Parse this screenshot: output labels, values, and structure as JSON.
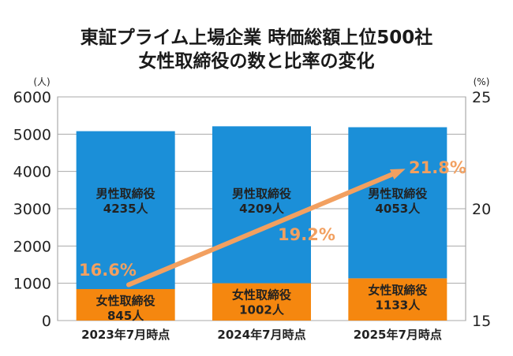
{
  "title_line1": "東証プライム上場企業 時価総額上位500社",
  "title_line2": "女性取締役の数と比率の変化",
  "chart_data": {
    "type": "bar",
    "stacked": true,
    "categories": [
      "2023年7月時点",
      "2024年7月時点",
      "2025年7月時点"
    ],
    "series": [
      {
        "name": "女性取締役",
        "values": [
          845,
          1002,
          1133
        ],
        "color": "#f5870f"
      },
      {
        "name": "男性取締役",
        "values": [
          4235,
          4209,
          4053
        ],
        "color": "#1b8fd8"
      }
    ],
    "segment_labels": {
      "女性取締役": [
        "女性取締役",
        "女性取締役",
        "女性取締役"
      ],
      "男性取締役": [
        "男性取締役",
        "男性取締役",
        "男性取締役"
      ],
      "female_counts": [
        "845人",
        "1002人",
        "1133人"
      ],
      "male_counts": [
        "4235人",
        "4209人",
        "4053人"
      ]
    },
    "ratio_series": {
      "values": [
        16.6,
        19.2,
        21.8
      ],
      "labels": [
        "16.6%",
        "19.2%",
        "21.8%"
      ],
      "color": "#f2a060",
      "style": "arrow"
    },
    "ylabel": "(人)",
    "y2label": "(%)",
    "ylim": [
      0,
      6000
    ],
    "y2lim": [
      15,
      25
    ],
    "yticks": [
      "0",
      "1000",
      "2000",
      "3000",
      "4000",
      "5000",
      "6000"
    ],
    "y2ticks": [
      "15",
      "20",
      "25"
    ],
    "grid": true,
    "legend": "none"
  }
}
